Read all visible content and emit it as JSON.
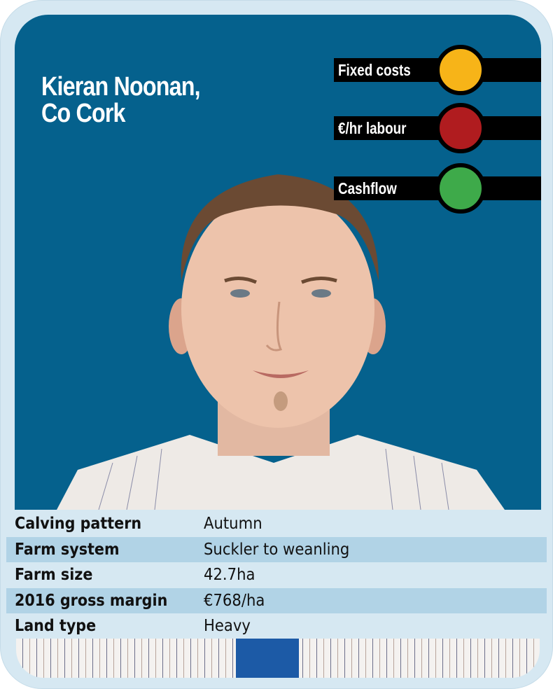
{
  "title": {
    "line1": "Kieran Noonan,",
    "line2": "Co Cork"
  },
  "indicators": [
    {
      "label": "Fixed costs",
      "status": "amber",
      "color": "#f7b418"
    },
    {
      "label": "€/hr labour",
      "status": "red",
      "color": "#b01c1f"
    },
    {
      "label": "Cashflow",
      "status": "green",
      "color": "#3eaa4a"
    }
  ],
  "details": [
    {
      "label": "Calving pattern",
      "value": "Autumn"
    },
    {
      "label": "Farm system",
      "value": "Suckler to weanling"
    },
    {
      "label": "Farm size",
      "value": "42.7ha"
    },
    {
      "label": "2016 gross margin",
      "value": "€768/ha"
    },
    {
      "label": "Land type",
      "value": "Heavy"
    }
  ],
  "colors": {
    "panel": "#05618d",
    "card": "#d6e8f2",
    "band": "#b1d3e6"
  }
}
